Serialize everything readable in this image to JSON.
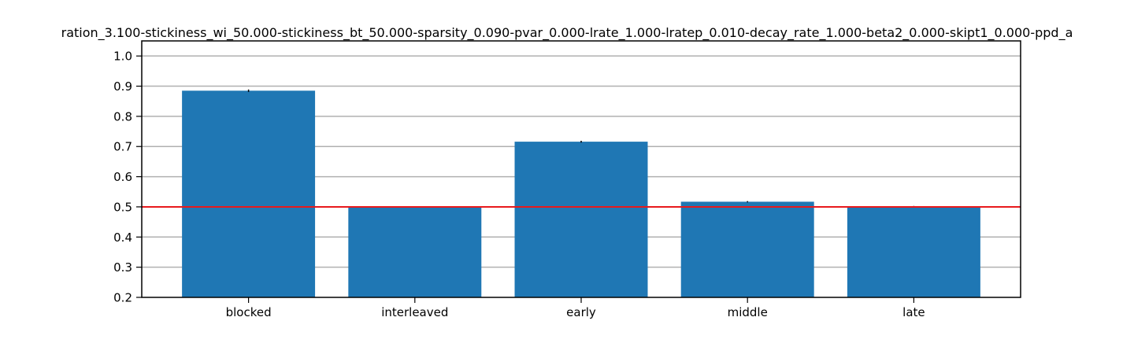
{
  "chart_data": {
    "type": "bar",
    "title": "ration_3.100-stickiness_wi_50.000-stickiness_bt_50.000-sparsity_0.090-pvar_0.000-lrate_1.000-lratep_0.010-decay_rate_1.000-beta2_0.000-skipt1_0.000-ppd_a",
    "xlabel": "",
    "ylabel": "",
    "categories": [
      "blocked",
      "interleaved",
      "early",
      "middle",
      "late"
    ],
    "values": [
      0.885,
      0.501,
      0.716,
      0.517,
      0.502
    ],
    "errors": [
      0.004,
      0.001,
      0.003,
      0.002,
      0.001
    ],
    "ylim": [
      0.2,
      1.05
    ],
    "yticks": [
      0.2,
      0.3,
      0.4,
      0.5,
      0.6,
      0.7,
      0.8,
      0.9,
      1.0
    ],
    "ytick_labels": [
      "0.2",
      "0.3",
      "0.4",
      "0.5",
      "0.6",
      "0.7",
      "0.8",
      "0.9",
      "1.0"
    ],
    "reference_line": {
      "y": 0.5,
      "color": "#e8191c"
    },
    "grid": {
      "y": true,
      "x": false,
      "color": "#b0b0b0"
    },
    "bar_color": "#1f77b4",
    "error_color": "#000000",
    "legend": "none"
  }
}
